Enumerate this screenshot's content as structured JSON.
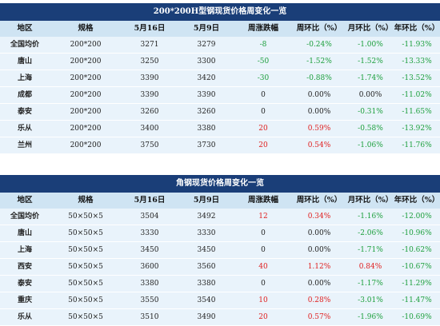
{
  "table1": {
    "title": "200*200H型钢现货价格周变化一览",
    "headers": [
      "地区",
      "规格",
      "5月16日",
      "5月9日",
      "周涨跌幅",
      "周环比（%）",
      "月环比（%）",
      "年环比（%）"
    ],
    "rows": [
      {
        "region": "全国均价",
        "spec": "200*200",
        "d1": "3271",
        "d2": "3279",
        "wk": "-8",
        "wk_pct": "-0.24%",
        "mo_pct": "-1.00%",
        "yr_pct": "-11.93%"
      },
      {
        "region": "唐山",
        "spec": "200*200",
        "d1": "3250",
        "d2": "3300",
        "wk": "-50",
        "wk_pct": "-1.52%",
        "mo_pct": "-1.52%",
        "yr_pct": "-13.33%"
      },
      {
        "region": "上海",
        "spec": "200*200",
        "d1": "3390",
        "d2": "3420",
        "wk": "-30",
        "wk_pct": "-0.88%",
        "mo_pct": "-1.74%",
        "yr_pct": "-13.52%"
      },
      {
        "region": "成都",
        "spec": "200*200",
        "d1": "3390",
        "d2": "3390",
        "wk": "0",
        "wk_pct": "0.00%",
        "mo_pct": "0.00%",
        "yr_pct": "-11.02%"
      },
      {
        "region": "泰安",
        "spec": "200*200",
        "d1": "3260",
        "d2": "3260",
        "wk": "0",
        "wk_pct": "0.00%",
        "mo_pct": "-0.31%",
        "yr_pct": "-11.65%"
      },
      {
        "region": "乐从",
        "spec": "200*200",
        "d1": "3400",
        "d2": "3380",
        "wk": "20",
        "wk_pct": "0.59%",
        "mo_pct": "-0.58%",
        "yr_pct": "-13.92%"
      },
      {
        "region": "兰州",
        "spec": "200*200",
        "d1": "3750",
        "d2": "3730",
        "wk": "20",
        "wk_pct": "0.54%",
        "mo_pct": "-1.06%",
        "yr_pct": "-11.76%"
      }
    ]
  },
  "table2": {
    "title": "角钢现货价格周变化一览",
    "headers": [
      "地区",
      "规格",
      "5月16日",
      "5月9日",
      "周涨跌幅",
      "周环比（%）",
      "月环比（%）",
      "年环比（%）"
    ],
    "rows": [
      {
        "region": "全国均价",
        "spec": "50×50×5",
        "d1": "3504",
        "d2": "3492",
        "wk": "12",
        "wk_pct": "0.34%",
        "mo_pct": "-1.16%",
        "yr_pct": "-12.00%"
      },
      {
        "region": "唐山",
        "spec": "50×50×5",
        "d1": "3330",
        "d2": "3330",
        "wk": "0",
        "wk_pct": "0.00%",
        "mo_pct": "-2.06%",
        "yr_pct": "-10.96%"
      },
      {
        "region": "上海",
        "spec": "50×50×5",
        "d1": "3450",
        "d2": "3450",
        "wk": "0",
        "wk_pct": "0.00%",
        "mo_pct": "-1.71%",
        "yr_pct": "-10.62%"
      },
      {
        "region": "西安",
        "spec": "50×50×5",
        "d1": "3600",
        "d2": "3560",
        "wk": "40",
        "wk_pct": "1.12%",
        "mo_pct": "0.84%",
        "yr_pct": "-10.67%"
      },
      {
        "region": "泰安",
        "spec": "50×50×5",
        "d1": "3380",
        "d2": "3380",
        "wk": "0",
        "wk_pct": "0.00%",
        "mo_pct": "-1.17%",
        "yr_pct": "-11.29%"
      },
      {
        "region": "重庆",
        "spec": "50×50×5",
        "d1": "3550",
        "d2": "3540",
        "wk": "10",
        "wk_pct": "0.28%",
        "mo_pct": "-3.01%",
        "yr_pct": "-11.47%"
      },
      {
        "region": "乐从",
        "spec": "50×50×5",
        "d1": "3510",
        "d2": "3490",
        "wk": "20",
        "wk_pct": "0.57%",
        "mo_pct": "-1.96%",
        "yr_pct": "-10.69%"
      }
    ]
  },
  "colors": {
    "title_bg": "#1a3e78",
    "header_bg": "#cfe4f3",
    "row_bg": "#e9f3fb",
    "up": "#e02020",
    "down": "#1a9e3a"
  }
}
